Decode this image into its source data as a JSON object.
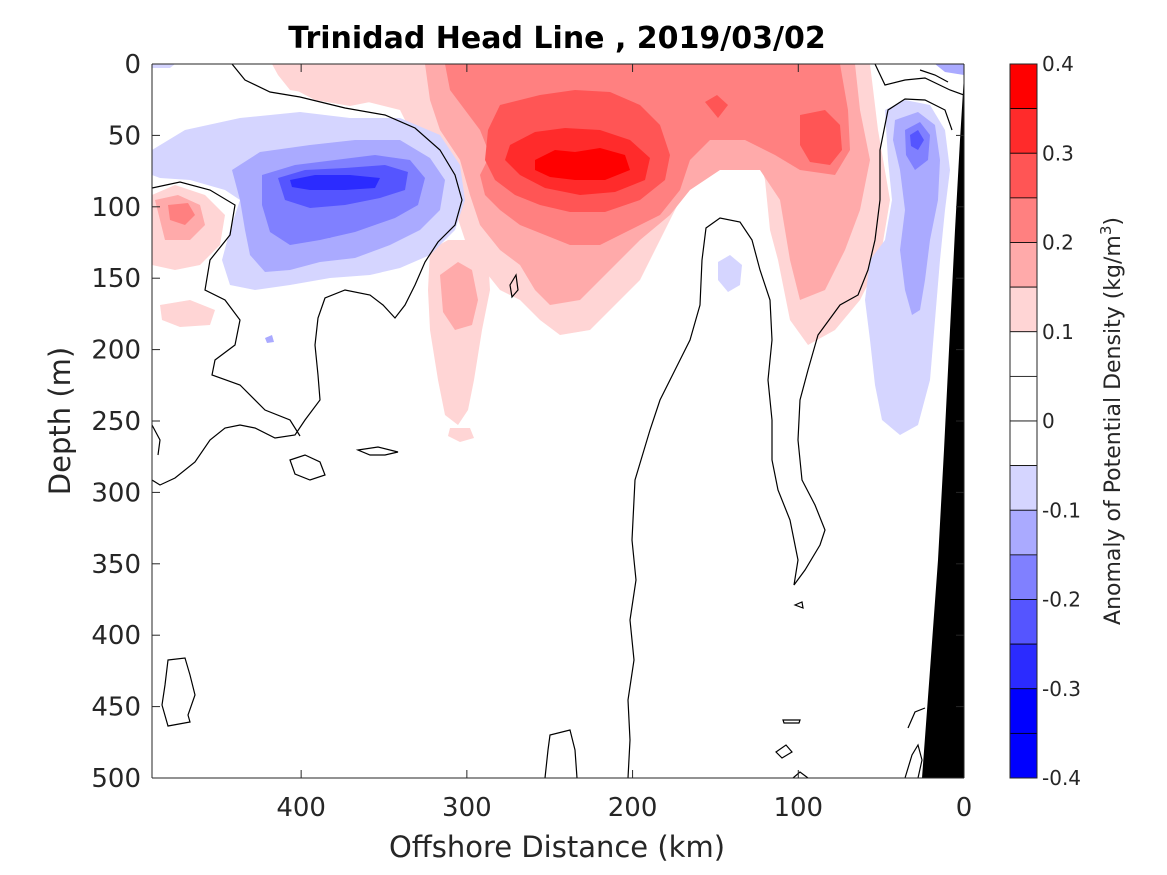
{
  "chart_data": {
    "type": "heatmap",
    "title": "Trinidad Head Line , 2019/03/02",
    "xlabel": "Offshore Distance (km)",
    "ylabel": "Depth (m)",
    "xlim": [
      490,
      0
    ],
    "ylim": [
      0,
      500
    ],
    "x_reversed": true,
    "y_reversed": true,
    "x_ticks": [
      400,
      300,
      200,
      100,
      0
    ],
    "y_ticks": [
      0,
      50,
      100,
      150,
      200,
      250,
      300,
      350,
      400,
      450,
      500
    ],
    "colorbar": {
      "label": "Anomaly of Potential Density (kg/m",
      "label_superscript": "3",
      "label_suffix": ")",
      "range": [
        -0.4,
        0.4
      ],
      "ticks": [
        0.4,
        0.3,
        0.2,
        0.1,
        0,
        -0.1,
        -0.2,
        -0.3,
        -0.4
      ],
      "levels": [
        {
          "from": 0.35,
          "to": 0.4,
          "color": "#ff0000"
        },
        {
          "from": 0.3,
          "to": 0.35,
          "color": "#ff2b2b"
        },
        {
          "from": 0.25,
          "to": 0.3,
          "color": "#ff5555"
        },
        {
          "from": 0.2,
          "to": 0.25,
          "color": "#ff8080"
        },
        {
          "from": 0.15,
          "to": 0.2,
          "color": "#ffaaaa"
        },
        {
          "from": 0.1,
          "to": 0.15,
          "color": "#ffd5d5"
        },
        {
          "from": 0.05,
          "to": 0.1,
          "color": "#ffffff"
        },
        {
          "from": 0.0,
          "to": 0.05,
          "color": "#ffffff"
        },
        {
          "from": -0.05,
          "to": 0.0,
          "color": "#ffffff"
        },
        {
          "from": -0.1,
          "to": -0.05,
          "color": "#d5d5ff"
        },
        {
          "from": -0.15,
          "to": -0.1,
          "color": "#aaaaff"
        },
        {
          "from": -0.2,
          "to": -0.15,
          "color": "#8080ff"
        },
        {
          "from": -0.25,
          "to": -0.2,
          "color": "#5555ff"
        },
        {
          "from": -0.3,
          "to": -0.25,
          "color": "#2b2bff"
        },
        {
          "from": -0.35,
          "to": -0.3,
          "color": "#0000ff"
        },
        {
          "from": -0.4,
          "to": -0.35,
          "color": "#0000ff"
        }
      ]
    },
    "features": [
      {
        "name": "deep red core",
        "x_center": 230,
        "depth_center": 75,
        "value": 0.35
      },
      {
        "name": "red band",
        "x_center": 180,
        "depth_center": 40,
        "value": 0.2
      },
      {
        "name": "blue core",
        "x_center": 380,
        "depth_center": 90,
        "value": -0.25
      },
      {
        "name": "nearshore blue",
        "x_center": 30,
        "depth_center": 80,
        "value": -0.15
      }
    ],
    "colors": {
      "bathymetry": "#000000",
      "contour": "#000000",
      "axis": "#262626"
    }
  }
}
